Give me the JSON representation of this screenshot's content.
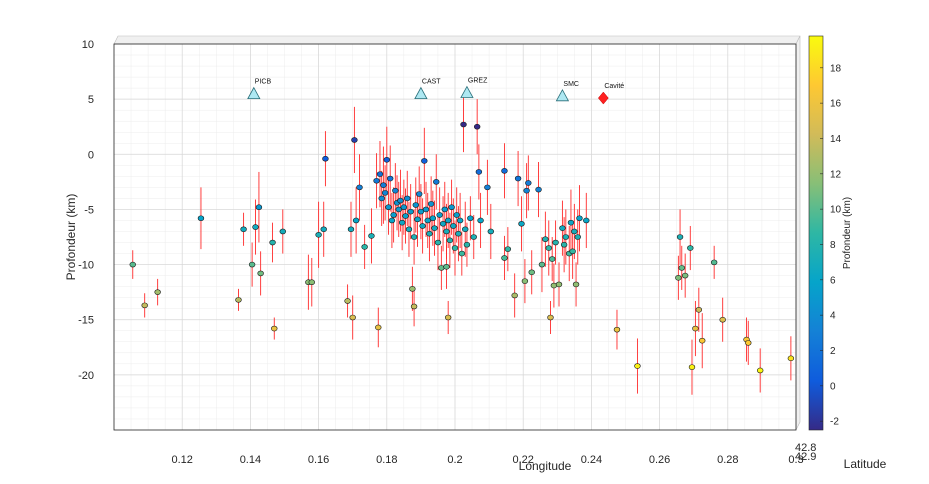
{
  "chart_data": {
    "type": "scatter",
    "title": "",
    "xlabel": "Longitude",
    "ylabel": "Profondeur (km)",
    "zlabel": "Latitude",
    "colorbar_label": "Profondeur (km)",
    "xlim": [
      0.1,
      0.3
    ],
    "ylim": [
      -25,
      10
    ],
    "xticks": [
      0.12,
      0.14,
      0.16,
      0.18,
      0.2,
      0.22,
      0.24,
      0.26,
      0.28,
      0.3
    ],
    "xtick_labels": [
      "0.12",
      "0.14",
      "0.16",
      "0.18",
      "0.2",
      "0.22",
      "0.24",
      "0.26",
      "0.28",
      "0.3"
    ],
    "yticks": [
      10,
      5,
      0,
      -5,
      -10,
      -15,
      -20
    ],
    "ytick_labels": [
      "10",
      "5",
      "0",
      "-5",
      "-10",
      "-15",
      "-20"
    ],
    "z_tick_labels": [
      "42.8",
      "42.9"
    ],
    "colorbar_range": [
      -2.5,
      19.8
    ],
    "colorbar_ticks": [
      -2,
      0,
      2,
      4,
      6,
      8,
      10,
      12,
      14,
      16,
      18
    ],
    "colorbar_tick_labels": [
      "-2",
      "0",
      "2",
      "4",
      "6",
      "8",
      "10",
      "12",
      "14",
      "16",
      "18"
    ],
    "grid": true,
    "colormap": "parula",
    "error_bar_color": "#ff2a2a",
    "stations": [
      {
        "name": "PICB",
        "x": 0.141,
        "y": 5.5,
        "marker": "triangle",
        "color": "#aee8f2"
      },
      {
        "name": "CAST",
        "x": 0.19,
        "y": 5.5,
        "marker": "triangle",
        "color": "#aee8f2"
      },
      {
        "name": "GREZ",
        "x": 0.2035,
        "y": 5.6,
        "marker": "triangle",
        "color": "#aee8f2"
      },
      {
        "name": "SMC",
        "x": 0.2315,
        "y": 5.3,
        "marker": "triangle",
        "color": "#aee8f2"
      },
      {
        "name": "Cavité",
        "x": 0.2435,
        "y": 5.1,
        "marker": "diamond",
        "color": "#ff2020"
      }
    ],
    "series": [
      {
        "points": [
          [
            0.1055,
            -10.0,
            1.3
          ],
          [
            0.109,
            -13.7,
            1.1
          ],
          [
            0.1128,
            -12.5,
            1.2
          ],
          [
            0.1255,
            -5.8,
            2.8
          ],
          [
            0.1365,
            -13.2,
            1.0
          ],
          [
            0.138,
            -6.8,
            1.5
          ],
          [
            0.1405,
            -10.0,
            2.0
          ],
          [
            0.1415,
            -6.6,
            2.5
          ],
          [
            0.1425,
            -4.8,
            3.2
          ],
          [
            0.143,
            -10.8,
            2.0
          ],
          [
            0.1465,
            -8.0,
            1.8
          ],
          [
            0.147,
            -15.8,
            1.0
          ],
          [
            0.1495,
            -7.0,
            2.0
          ],
          [
            0.157,
            -11.6,
            2.5
          ],
          [
            0.158,
            -11.6,
            2.2
          ],
          [
            0.16,
            -7.3,
            3.0
          ],
          [
            0.1615,
            -6.8,
            2.5
          ],
          [
            0.162,
            -0.4,
            2.5
          ],
          [
            0.1685,
            -13.3,
            1.5
          ],
          [
            0.1695,
            -6.8,
            2.5
          ],
          [
            0.17,
            -14.8,
            2.0
          ],
          [
            0.1705,
            1.3,
            3.0
          ],
          [
            0.171,
            -6.0,
            3.0
          ],
          [
            0.172,
            -3.0,
            3.0
          ],
          [
            0.1735,
            -8.4,
            2.0
          ],
          [
            0.1755,
            -7.4,
            2.5
          ],
          [
            0.177,
            -2.4,
            2.5
          ],
          [
            0.1775,
            -15.7,
            1.8
          ],
          [
            0.178,
            -1.8,
            3.0
          ],
          [
            0.1785,
            -4.0,
            2.5
          ],
          [
            0.179,
            -2.8,
            3.5
          ],
          [
            0.1795,
            -3.5,
            2.5
          ],
          [
            0.18,
            -0.5,
            3.0
          ],
          [
            0.1805,
            -4.8,
            2.5
          ],
          [
            0.181,
            -2.2,
            3.0
          ],
          [
            0.1815,
            -6.0,
            2.5
          ],
          [
            0.182,
            -5.5,
            2.5
          ],
          [
            0.1825,
            -3.3,
            2.5
          ],
          [
            0.183,
            -4.4,
            2.5
          ],
          [
            0.1835,
            -5.0,
            2.5
          ],
          [
            0.184,
            -4.2,
            2.8
          ],
          [
            0.1845,
            -6.2,
            2.5
          ],
          [
            0.185,
            -4.8,
            2.5
          ],
          [
            0.1855,
            -5.6,
            2.5
          ],
          [
            0.186,
            -4.0,
            2.5
          ],
          [
            0.1865,
            -6.8,
            2.5
          ],
          [
            0.187,
            -5.2,
            2.5
          ],
          [
            0.1875,
            -12.2,
            2.0
          ],
          [
            0.188,
            -13.8,
            1.8
          ],
          [
            0.188,
            -7.5,
            2.5
          ],
          [
            0.1885,
            -4.6,
            2.5
          ],
          [
            0.189,
            -5.9,
            2.5
          ],
          [
            0.1895,
            -3.6,
            2.5
          ],
          [
            0.19,
            -5.2,
            2.5
          ],
          [
            0.1905,
            -6.5,
            2.5
          ],
          [
            0.191,
            -0.6,
            3.0
          ],
          [
            0.1915,
            -5.0,
            2.5
          ],
          [
            0.192,
            -6.0,
            2.5
          ],
          [
            0.1925,
            -7.2,
            2.5
          ],
          [
            0.193,
            -4.5,
            2.5
          ],
          [
            0.1935,
            -5.8,
            2.5
          ],
          [
            0.194,
            -6.7,
            2.5
          ],
          [
            0.1945,
            -2.5,
            2.5
          ],
          [
            0.195,
            -8.0,
            2.5
          ],
          [
            0.1955,
            -5.5,
            2.5
          ],
          [
            0.196,
            -10.3,
            2.0
          ],
          [
            0.1965,
            -6.3,
            2.5
          ],
          [
            0.197,
            -5.0,
            2.5
          ],
          [
            0.1975,
            -7.0,
            2.5
          ],
          [
            0.1975,
            -10.2,
            2.0
          ],
          [
            0.198,
            -14.8,
            1.5
          ],
          [
            0.198,
            -6.0,
            2.5
          ],
          [
            0.1985,
            -7.8,
            2.5
          ],
          [
            0.199,
            -4.8,
            2.5
          ],
          [
            0.1995,
            -6.5,
            2.5
          ],
          [
            0.2,
            -8.5,
            2.5
          ],
          [
            0.2005,
            -5.5,
            2.5
          ],
          [
            0.201,
            -7.2,
            2.5
          ],
          [
            0.2015,
            -6.0,
            2.5
          ],
          [
            0.202,
            -9.0,
            2.0
          ],
          [
            0.2025,
            2.7,
            2.5
          ],
          [
            0.203,
            -6.8,
            2.5
          ],
          [
            0.2035,
            -8.2,
            2.0
          ],
          [
            0.2045,
            -5.8,
            2.0
          ],
          [
            0.2055,
            -7.5,
            2.0
          ],
          [
            0.2065,
            2.5,
            2.5
          ],
          [
            0.207,
            -1.6,
            2.5
          ],
          [
            0.2075,
            -6.0,
            2.5
          ],
          [
            0.2095,
            -3.0,
            2.5
          ],
          [
            0.2105,
            -7.0,
            2.5
          ],
          [
            0.2145,
            -1.5,
            2.5
          ],
          [
            0.2145,
            -9.4,
            2.0
          ],
          [
            0.2155,
            -8.6,
            2.0
          ],
          [
            0.2175,
            -12.8,
            2.0
          ],
          [
            0.2185,
            -2.2,
            2.5
          ],
          [
            0.2195,
            -6.3,
            2.5
          ],
          [
            0.2205,
            -11.5,
            2.0
          ],
          [
            0.221,
            -3.3,
            2.5
          ],
          [
            0.2215,
            -2.6,
            2.5
          ],
          [
            0.2225,
            -10.7,
            2.0
          ],
          [
            0.2245,
            -3.2,
            2.5
          ],
          [
            0.2255,
            -10.0,
            2.5
          ],
          [
            0.2265,
            -7.7,
            2.5
          ],
          [
            0.2275,
            -8.5,
            2.5
          ],
          [
            0.228,
            -14.8,
            1.5
          ],
          [
            0.2285,
            -9.5,
            2.0
          ],
          [
            0.229,
            -11.9,
            2.0
          ],
          [
            0.2295,
            -8.0,
            2.0
          ],
          [
            0.2305,
            -11.8,
            2.0
          ],
          [
            0.2315,
            -6.7,
            2.5
          ],
          [
            0.232,
            -8.2,
            2.5
          ],
          [
            0.2325,
            -7.5,
            2.5
          ],
          [
            0.2335,
            -9.0,
            2.5
          ],
          [
            0.234,
            -6.2,
            3.0
          ],
          [
            0.2345,
            -8.8,
            2.5
          ],
          [
            0.235,
            -7.0,
            2.5
          ],
          [
            0.2355,
            -11.8,
            2.0
          ],
          [
            0.236,
            -7.5,
            2.5
          ],
          [
            0.2365,
            -5.8,
            3.0
          ],
          [
            0.2385,
            -6.0,
            2.5
          ],
          [
            0.2475,
            -15.9,
            1.8
          ],
          [
            0.2535,
            -19.2,
            2.5
          ],
          [
            0.2655,
            -11.2,
            2.0
          ],
          [
            0.266,
            -7.5,
            2.5
          ],
          [
            0.2665,
            -10.3,
            2.0
          ],
          [
            0.2675,
            -11.0,
            2.0
          ],
          [
            0.269,
            -8.5,
            2.0
          ],
          [
            0.2695,
            -19.3,
            2.5
          ],
          [
            0.2705,
            -15.8,
            2.5
          ],
          [
            0.2715,
            -14.1,
            2.0
          ],
          [
            0.2725,
            -16.9,
            2.5
          ],
          [
            0.276,
            -9.8,
            1.5
          ],
          [
            0.2785,
            -15.0,
            2.0
          ],
          [
            0.2855,
            -16.8,
            2.0
          ],
          [
            0.286,
            -17.1,
            2.0
          ],
          [
            0.2895,
            -19.6,
            2.0
          ],
          [
            0.2985,
            -18.5,
            2.0
          ]
        ]
      }
    ]
  }
}
